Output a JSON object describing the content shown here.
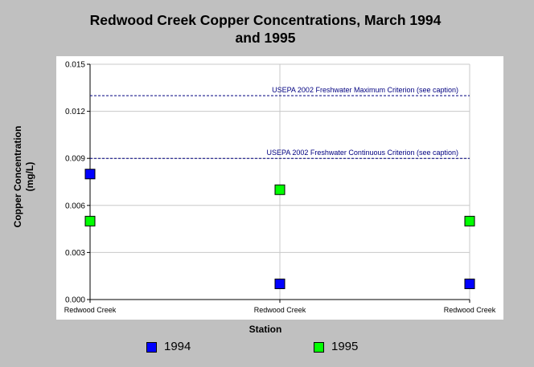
{
  "chart_data": {
    "type": "scatter",
    "title": [
      "Redwood Creek Copper Concentrations, March 1994",
      "and 1995"
    ],
    "xlabel": "Station",
    "ylabel": [
      "Copper Concentration",
      "(mg/L)"
    ],
    "categories": [
      "Redwood Creek",
      "Redwood Creek",
      "Redwood Creek"
    ],
    "ylim": [
      0,
      0.015
    ],
    "yticks": [
      "0.000",
      "0.003",
      "0.006",
      "0.009",
      "0.012",
      "0.015"
    ],
    "grid": true,
    "legend_position": "bottom",
    "series": [
      {
        "name": "1994",
        "color": "#0000ff",
        "values": [
          0.008,
          0.001,
          0.001
        ]
      },
      {
        "name": "1995",
        "color": "#00ff00",
        "values": [
          0.005,
          0.007,
          0.005
        ]
      }
    ],
    "reference_lines": [
      {
        "label": "USEPA 2002 Freshwater Maximum Criterion (see caption)",
        "value": 0.013,
        "color": "#000080"
      },
      {
        "label": "USEPA 2002 Freshwater Continuous Criterion (see caption)",
        "value": 0.009,
        "color": "#000080"
      }
    ]
  }
}
